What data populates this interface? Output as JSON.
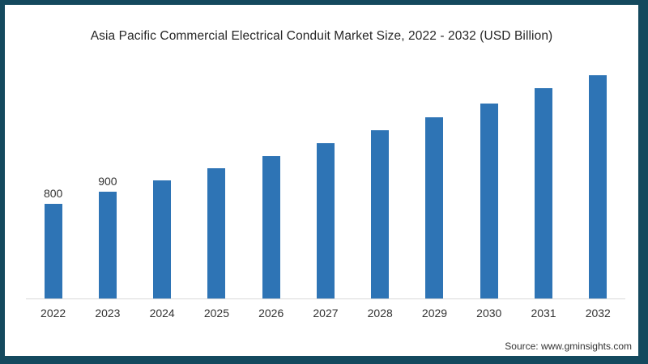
{
  "title": "Asia Pacific Commercial Electrical Conduit Market Size, 2022 - 2032 (USD Billion)",
  "source": "Source: www.gminsights.com",
  "colors": {
    "bar": "#2e74b5",
    "frame_border": "#14495e",
    "axis_line": "#d9d9d9",
    "title_text": "#262626",
    "label_text": "#333333"
  },
  "chart_data": {
    "type": "bar",
    "title": "Asia Pacific Commercial Electrical Conduit Market Size, 2022 - 2032 (USD Billion)",
    "categories": [
      "2022",
      "2023",
      "2024",
      "2025",
      "2026",
      "2027",
      "2028",
      "2029",
      "2030",
      "2031",
      "2032"
    ],
    "values": [
      800,
      900,
      1000,
      1100,
      1200,
      1310,
      1420,
      1530,
      1650,
      1780,
      1890
    ],
    "data_labels": [
      "800",
      "900",
      "",
      "",
      "",
      "",
      "",
      "",
      "",
      "",
      ""
    ],
    "xlabel": "",
    "ylabel": "",
    "ylim": [
      0,
      2000
    ],
    "grid": false,
    "legend": "none",
    "bar_color": "#2e74b5"
  }
}
